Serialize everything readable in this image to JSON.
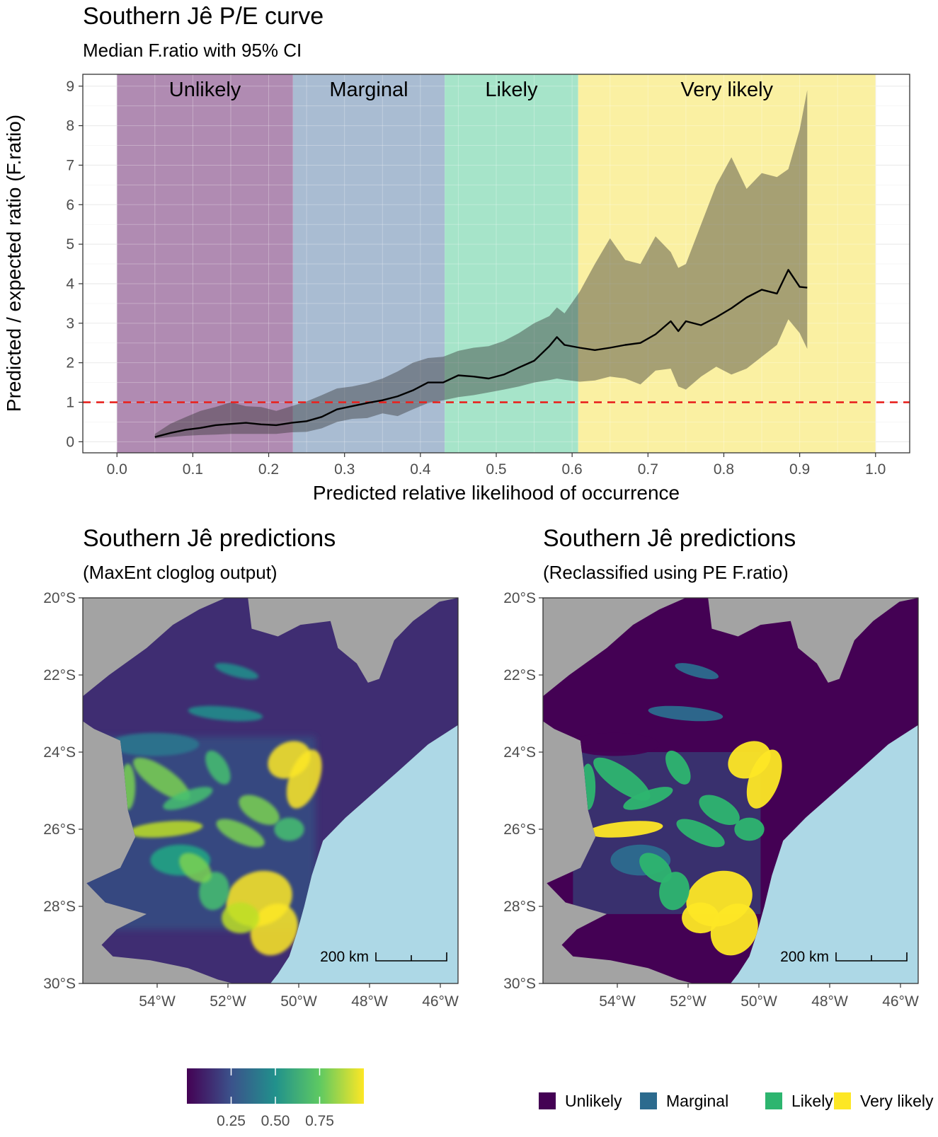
{
  "chart_data": [
    {
      "type": "line",
      "title": "Southern Jê P/E curve",
      "subtitle": "Median F.ratio with 95% CI",
      "xlabel": "Predicted relative likelihood of occurrence",
      "ylabel": "Predicted / expected ratio (F.ratio)",
      "xlim": [
        -0.045,
        1.045
      ],
      "ylim": [
        -0.28,
        9.3
      ],
      "x_ticks": [
        "0.0",
        "0.1",
        "0.2",
        "0.3",
        "0.4",
        "0.5",
        "0.6",
        "0.7",
        "0.8",
        "0.9",
        "1.0"
      ],
      "y_ticks": [
        "0",
        "1",
        "2",
        "3",
        "4",
        "5",
        "6",
        "7",
        "8",
        "9"
      ],
      "grid": true,
      "reference_line": {
        "y": 1,
        "color": "#e8231f",
        "style": "dashed"
      },
      "bands": [
        {
          "label": "Unlikely",
          "from": 0.0,
          "to": 0.232,
          "color": "#b08bb2"
        },
        {
          "label": "Marginal",
          "from": 0.232,
          "to": 0.432,
          "color": "#a9bcd2"
        },
        {
          "label": "Likely",
          "from": 0.432,
          "to": 0.608,
          "color": "#a6e4c9"
        },
        {
          "label": "Very likely",
          "from": 0.608,
          "to": 1.0,
          "color": "#faf0a2"
        }
      ],
      "series": [
        {
          "x": [
            0.05,
            0.07,
            0.09,
            0.11,
            0.13,
            0.15,
            0.17,
            0.19,
            0.21,
            0.23,
            0.25,
            0.27,
            0.29,
            0.31,
            0.33,
            0.35,
            0.37,
            0.39,
            0.41,
            0.43,
            0.45,
            0.47,
            0.49,
            0.51,
            0.53,
            0.55,
            0.57,
            0.58,
            0.59,
            0.61,
            0.63,
            0.65,
            0.67,
            0.69,
            0.71,
            0.73,
            0.74,
            0.75,
            0.77,
            0.79,
            0.81,
            0.83,
            0.85,
            0.87,
            0.885,
            0.9,
            0.91
          ],
          "median": [
            0.12,
            0.22,
            0.3,
            0.35,
            0.42,
            0.45,
            0.48,
            0.44,
            0.42,
            0.48,
            0.52,
            0.63,
            0.82,
            0.9,
            0.98,
            1.05,
            1.15,
            1.3,
            1.5,
            1.5,
            1.68,
            1.65,
            1.6,
            1.7,
            1.88,
            2.05,
            2.42,
            2.65,
            2.45,
            2.38,
            2.32,
            2.38,
            2.45,
            2.5,
            2.72,
            3.05,
            2.8,
            3.05,
            2.95,
            3.15,
            3.38,
            3.65,
            3.85,
            3.75,
            4.35,
            3.92,
            3.9
          ],
          "lower": [
            0.08,
            0.12,
            0.15,
            0.17,
            0.18,
            0.2,
            0.2,
            0.2,
            0.2,
            0.24,
            0.25,
            0.34,
            0.5,
            0.58,
            0.6,
            0.72,
            0.65,
            0.82,
            0.98,
            1.05,
            1.13,
            1.18,
            1.25,
            1.32,
            1.4,
            1.5,
            1.56,
            1.6,
            1.57,
            1.52,
            1.55,
            1.65,
            1.6,
            1.45,
            1.8,
            1.85,
            1.4,
            1.32,
            1.65,
            1.9,
            1.7,
            1.85,
            2.15,
            2.45,
            3.1,
            2.75,
            2.35
          ],
          "upper": [
            0.2,
            0.45,
            0.62,
            0.78,
            0.88,
            1.0,
            0.9,
            0.88,
            0.78,
            0.9,
            1.02,
            1.18,
            1.35,
            1.4,
            1.48,
            1.6,
            1.78,
            2.0,
            2.12,
            2.15,
            2.3,
            2.38,
            2.42,
            2.55,
            2.75,
            3.0,
            3.18,
            3.4,
            3.25,
            3.8,
            4.5,
            5.15,
            4.6,
            4.5,
            5.2,
            4.8,
            4.4,
            4.5,
            5.5,
            6.5,
            7.2,
            6.4,
            6.8,
            6.7,
            6.9,
            7.9,
            8.9
          ]
        }
      ]
    },
    {
      "type": "heatmap",
      "title": "Southern Jê predictions",
      "subtitle": "(MaxEnt cloglog output)",
      "y_ticks": [
        "20°S",
        "22°S",
        "24°S",
        "26°S",
        "28°S",
        "30°S"
      ],
      "x_ticks": [
        "54°W",
        "52°W",
        "50°W",
        "48°W",
        "46°W"
      ],
      "scalebar": "200 km",
      "colorbar_ticks": [
        "0.25",
        "0.50",
        "0.75"
      ],
      "colors": {
        "land_background": "#a3a3a3",
        "ocean": "#add8e6"
      }
    },
    {
      "type": "heatmap",
      "title": "Southern Jê predictions",
      "subtitle": "(Reclassified using PE F.ratio)",
      "y_ticks": [
        "20°S",
        "22°S",
        "24°S",
        "26°S",
        "28°S",
        "30°S"
      ],
      "x_ticks": [
        "54°W",
        "52°W",
        "50°W",
        "48°W",
        "46°W"
      ],
      "scalebar": "200 km",
      "legend": [
        {
          "label": "Unlikely",
          "color": "#440154"
        },
        {
          "label": "Marginal",
          "color": "#2c6b8e"
        },
        {
          "label": "Likely",
          "color": "#2db56f"
        },
        {
          "label": "Very likely",
          "color": "#fde725"
        }
      ],
      "colors": {
        "land_background": "#a3a3a3",
        "ocean": "#add8e6"
      }
    }
  ]
}
